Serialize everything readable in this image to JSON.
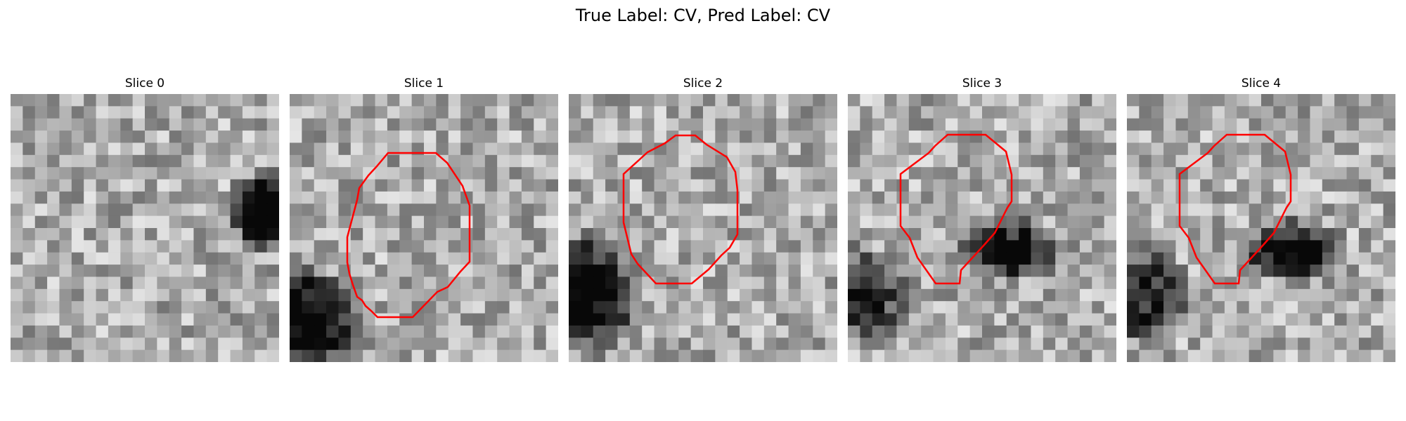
{
  "figure": {
    "title": "True Label: CV, Pred Label: CV",
    "contour_color": "#ff0000"
  },
  "slices": [
    {
      "label": "Slice 0",
      "seed": 11,
      "has_contour": false,
      "dark_blob": "right"
    },
    {
      "label": "Slice 1",
      "seed": 23,
      "has_contour": true,
      "dark_blob": "bottom-left"
    },
    {
      "label": "Slice 2",
      "seed": 37,
      "has_contour": true,
      "dark_blob": "left"
    },
    {
      "label": "Slice 3",
      "seed": 41,
      "has_contour": true,
      "dark_blob": "center-right"
    },
    {
      "label": "Slice 4",
      "seed": 53,
      "has_contour": true,
      "dark_blob": "center-right"
    }
  ]
}
